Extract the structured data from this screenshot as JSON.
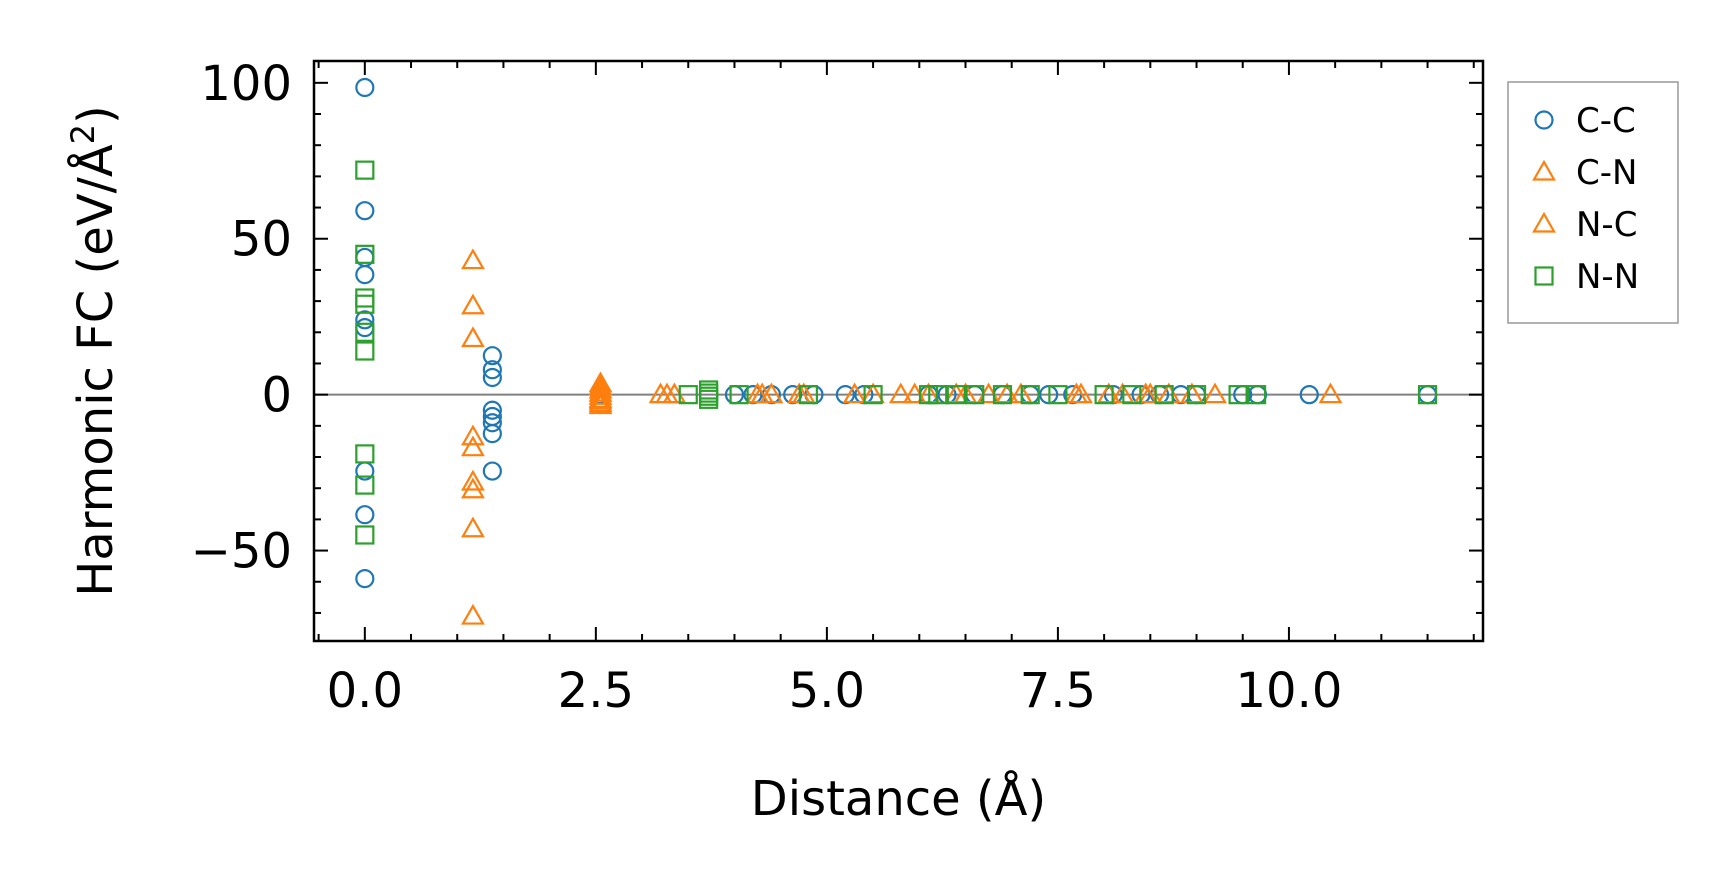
{
  "chart_data": {
    "type": "scatter",
    "xlabel": "Distance (Å)",
    "ylabel_main": "Harmonic FC (eV/Å",
    "ylabel_sup": "2",
    "ylabel_close": ")",
    "xlim": [
      -0.55,
      12.1
    ],
    "ylim": [
      -79,
      107
    ],
    "xticks": [
      0.0,
      2.5,
      5.0,
      7.5,
      10.0
    ],
    "xtick_labels": [
      "0.0",
      "2.5",
      "5.0",
      "7.5",
      "10.0"
    ],
    "yticks": [
      -50,
      0,
      50,
      100
    ],
    "ytick_labels": [
      "−50",
      "0",
      "50",
      "100"
    ],
    "x_minor_step": 0.5,
    "y_minor_step": 10,
    "zero_line": true,
    "legend_position": "outside-right",
    "series": [
      {
        "name": "C-C",
        "marker": "circle",
        "color": "#1f77b4",
        "points": [
          [
            0.0,
            98.5
          ],
          [
            0.0,
            59
          ],
          [
            0.0,
            44
          ],
          [
            0.0,
            38.5
          ],
          [
            0.0,
            24
          ],
          [
            0.0,
            21.5
          ],
          [
            0.0,
            -24.5
          ],
          [
            0.0,
            -38.5
          ],
          [
            0.0,
            -59
          ],
          [
            1.38,
            12.5
          ],
          [
            1.38,
            8
          ],
          [
            1.38,
            5.5
          ],
          [
            1.38,
            -5
          ],
          [
            1.38,
            -7
          ],
          [
            1.38,
            -9
          ],
          [
            1.38,
            -12.5
          ],
          [
            1.38,
            -24.5
          ],
          [
            2.54,
            0
          ],
          [
            4.0,
            0
          ],
          [
            4.2,
            0
          ],
          [
            4.4,
            0
          ],
          [
            4.63,
            0
          ],
          [
            4.86,
            0
          ],
          [
            5.2,
            0
          ],
          [
            5.4,
            0
          ],
          [
            6.1,
            0
          ],
          [
            6.3,
            0
          ],
          [
            6.6,
            0
          ],
          [
            6.9,
            0
          ],
          [
            7.2,
            0
          ],
          [
            7.4,
            0
          ],
          [
            7.66,
            0
          ],
          [
            8.1,
            0
          ],
          [
            8.4,
            0
          ],
          [
            8.6,
            0
          ],
          [
            8.83,
            0
          ],
          [
            9.0,
            0
          ],
          [
            9.5,
            0
          ],
          [
            9.66,
            0
          ],
          [
            10.22,
            0
          ],
          [
            11.5,
            0
          ]
        ]
      },
      {
        "name": "C-N",
        "marker": "triangle",
        "color": "#ff7f0e",
        "points": [
          [
            1.17,
            43
          ],
          [
            1.17,
            28.5
          ],
          [
            1.17,
            18
          ],
          [
            1.17,
            -13.5
          ],
          [
            1.17,
            -17
          ],
          [
            1.17,
            -28
          ],
          [
            1.17,
            -30.5
          ],
          [
            1.17,
            -43
          ],
          [
            1.17,
            -71
          ],
          [
            2.55,
            3.5
          ],
          [
            2.55,
            1.5
          ],
          [
            2.55,
            -0.5
          ],
          [
            2.55,
            -2
          ],
          [
            2.55,
            -3.5
          ],
          [
            3.2,
            0
          ],
          [
            3.35,
            0
          ],
          [
            4.25,
            0
          ],
          [
            4.4,
            0
          ],
          [
            4.75,
            0
          ],
          [
            5.3,
            0
          ],
          [
            5.5,
            0
          ],
          [
            5.8,
            0
          ],
          [
            6.1,
            0
          ],
          [
            6.4,
            0
          ],
          [
            6.75,
            0
          ],
          [
            7.1,
            0
          ],
          [
            7.7,
            0
          ],
          [
            8.2,
            0
          ],
          [
            8.5,
            0
          ],
          [
            8.7,
            0
          ],
          [
            9.2,
            0
          ],
          [
            10.45,
            0
          ]
        ]
      },
      {
        "name": "N-C",
        "marker": "triangle",
        "color": "#ff7f0e",
        "points": [
          [
            2.55,
            2.5
          ],
          [
            2.55,
            0.5
          ],
          [
            2.55,
            -1.5
          ],
          [
            2.55,
            -2.8
          ],
          [
            3.27,
            0
          ],
          [
            4.3,
            0
          ],
          [
            4.7,
            0
          ],
          [
            5.95,
            0
          ],
          [
            6.5,
            0
          ],
          [
            6.95,
            0
          ],
          [
            7.75,
            0
          ],
          [
            8.05,
            0
          ],
          [
            8.45,
            0
          ],
          [
            8.95,
            0
          ]
        ]
      },
      {
        "name": "N-N",
        "marker": "square",
        "color": "#2ca02c",
        "points": [
          [
            0.0,
            72
          ],
          [
            0.0,
            45
          ],
          [
            0.0,
            31
          ],
          [
            0.0,
            29
          ],
          [
            0.0,
            20
          ],
          [
            0.0,
            14
          ],
          [
            0.0,
            -19
          ],
          [
            0.0,
            -29
          ],
          [
            0.0,
            -45
          ],
          [
            3.5,
            0
          ],
          [
            3.72,
            1.5
          ],
          [
            3.72,
            0.5
          ],
          [
            3.72,
            -0.5
          ],
          [
            3.72,
            -1.5
          ],
          [
            4.05,
            0
          ],
          [
            4.8,
            0
          ],
          [
            5.5,
            0
          ],
          [
            6.1,
            0
          ],
          [
            6.2,
            0
          ],
          [
            6.4,
            0
          ],
          [
            6.6,
            0
          ],
          [
            6.9,
            0
          ],
          [
            7.2,
            0
          ],
          [
            7.5,
            0
          ],
          [
            8.0,
            0
          ],
          [
            8.3,
            0
          ],
          [
            8.65,
            0
          ],
          [
            9.0,
            0
          ],
          [
            9.45,
            0
          ],
          [
            9.65,
            0
          ],
          [
            11.5,
            0
          ]
        ]
      }
    ]
  }
}
